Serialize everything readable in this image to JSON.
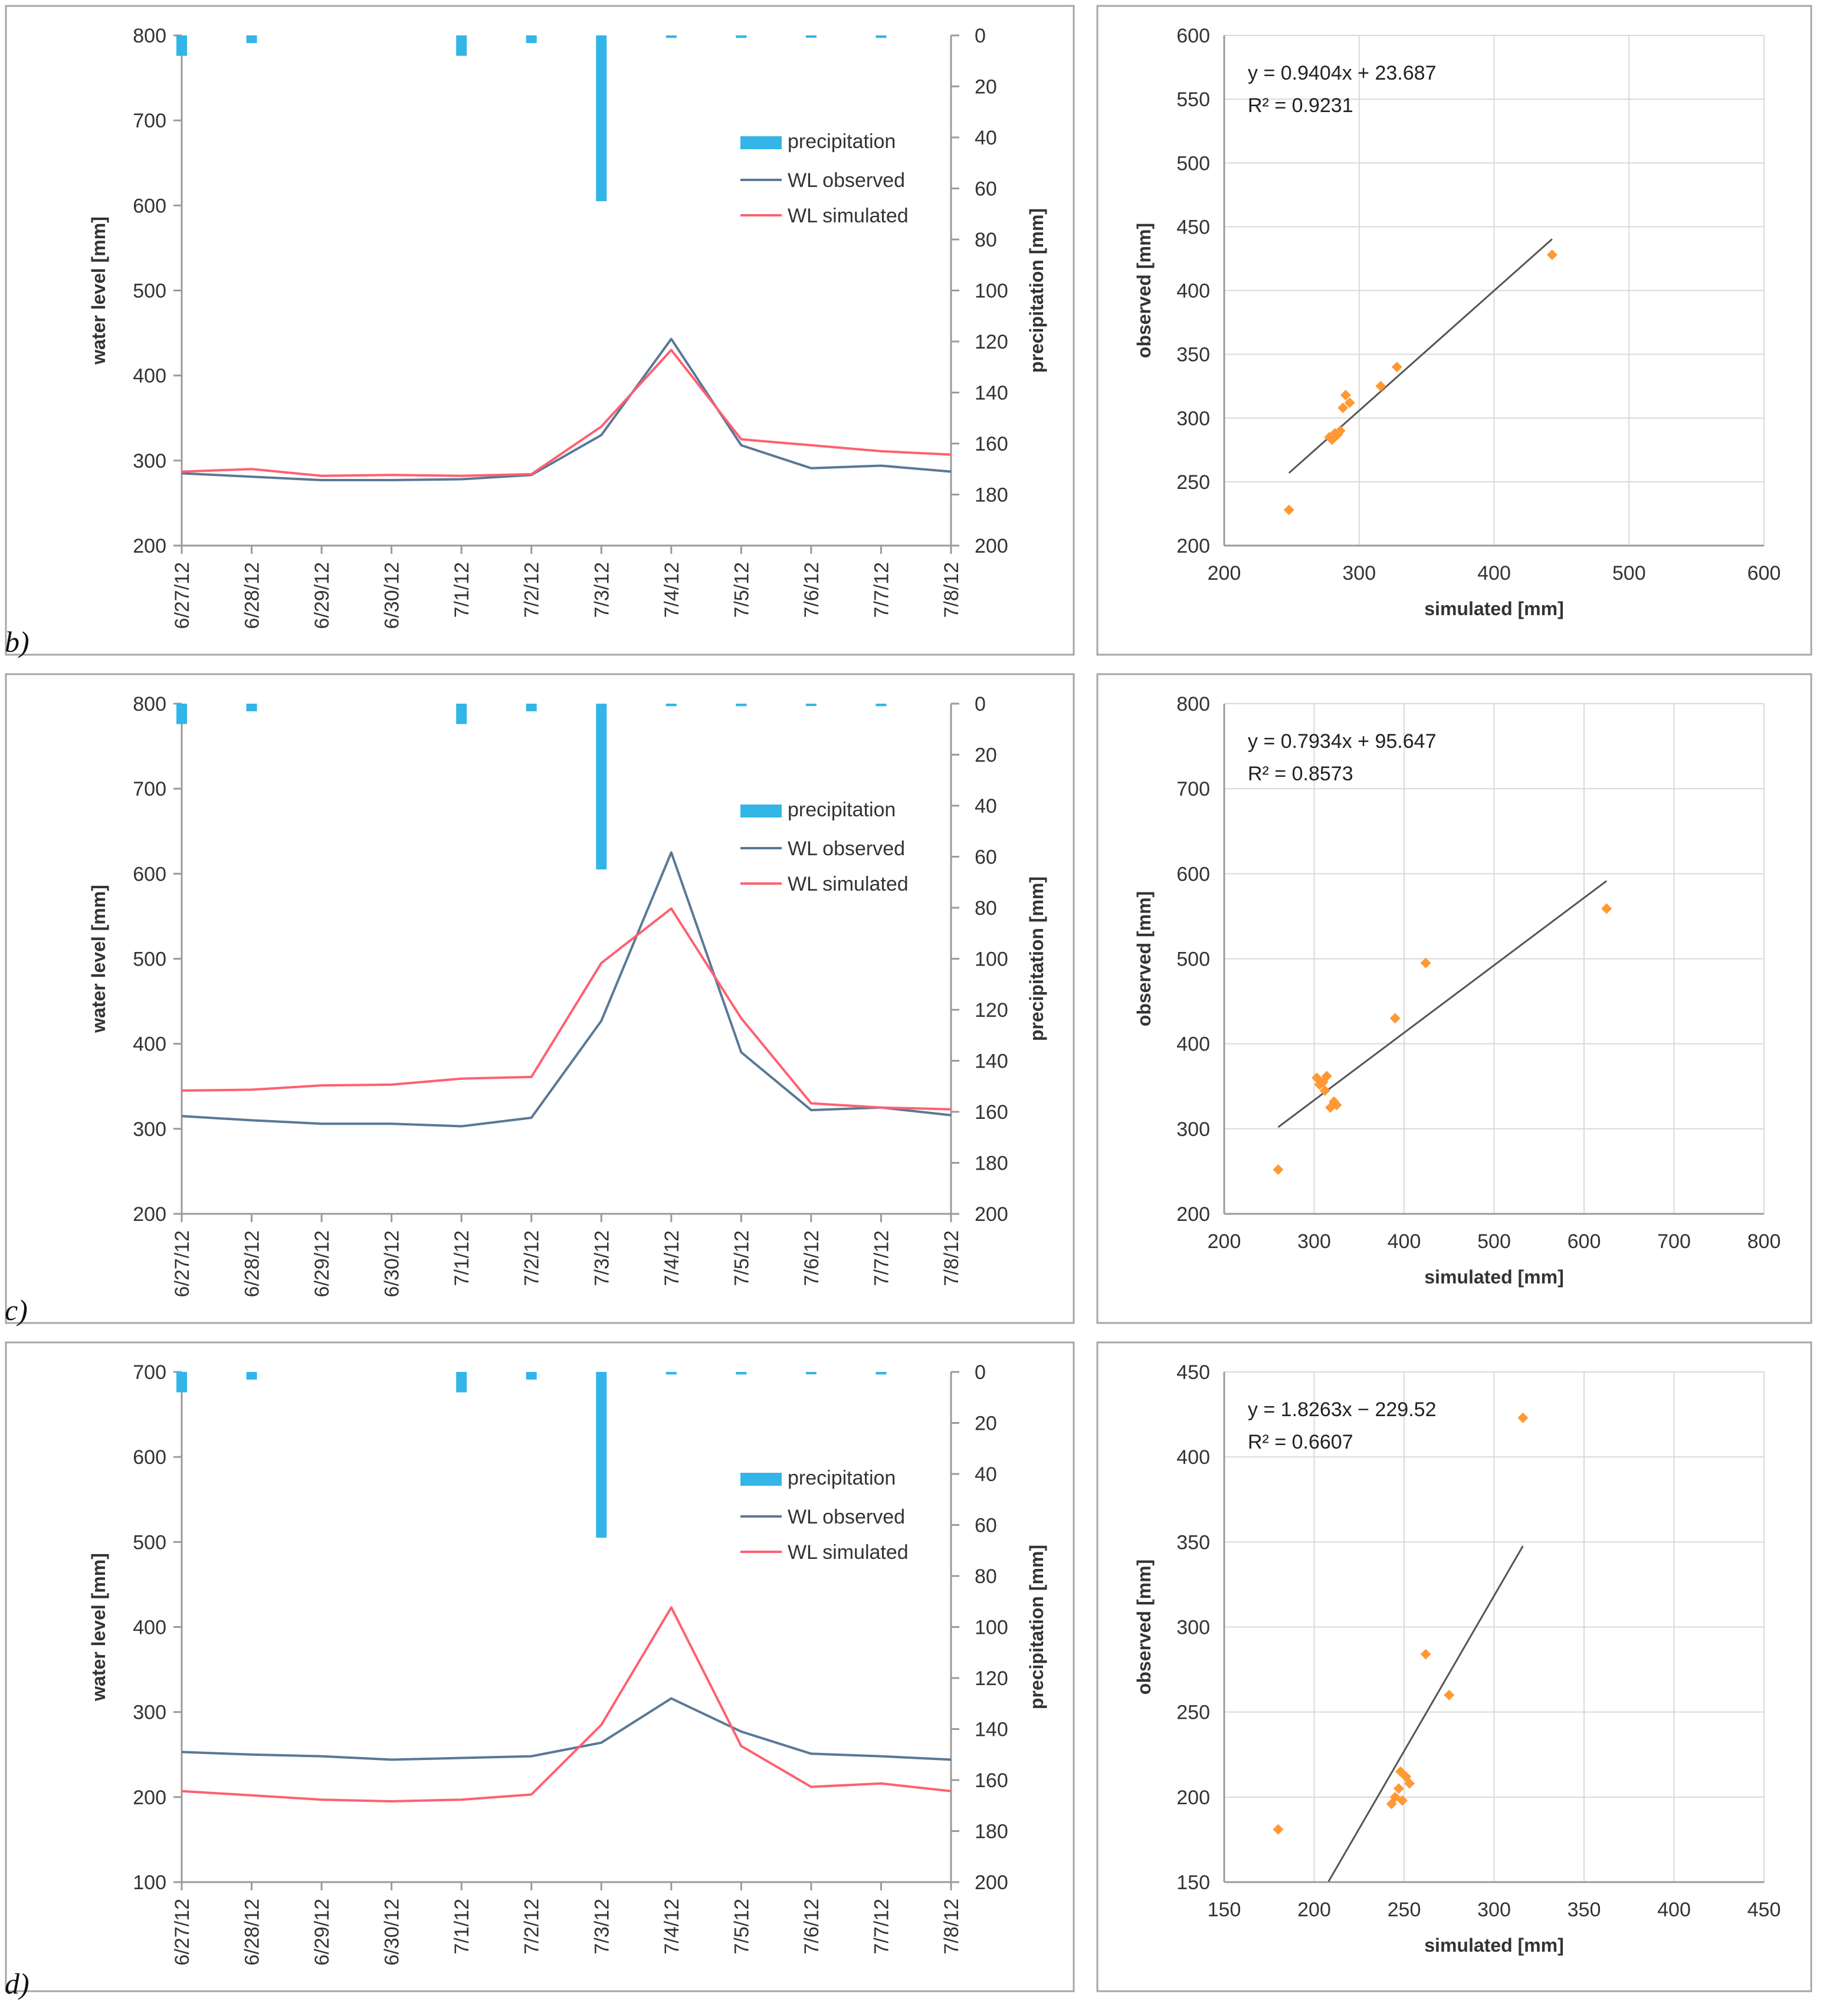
{
  "colors": {
    "precipitation": "#33b5e8",
    "observed": "#5a7896",
    "simulated": "#ff6070",
    "scatter": "#ff9933",
    "fit": "#555555",
    "grid": "#d9d9d9",
    "frame": "#a6a6a6"
  },
  "chart_data": [
    {
      "id": "b-timeseries",
      "panel_label": "b)",
      "type": "line",
      "categories": [
        "6/27/12",
        "6/28/12",
        "6/29/12",
        "6/30/12",
        "7/1/12",
        "7/2/12",
        "7/3/12",
        "7/4/12",
        "7/5/12",
        "7/6/12",
        "7/7/12",
        "7/8/12"
      ],
      "series": [
        {
          "name": "WL observed",
          "values": [
            285,
            281,
            277,
            277,
            278,
            283,
            330,
            443,
            318,
            291,
            294,
            287
          ]
        },
        {
          "name": "WL simulated",
          "values": [
            287,
            290,
            282,
            283,
            282,
            284,
            340,
            430,
            325,
            318,
            311,
            307
          ]
        }
      ],
      "precipitation": {
        "name": "precipitation",
        "values": [
          8,
          3,
          0,
          0,
          8,
          3,
          65,
          1,
          1,
          0.5,
          1,
          0
        ]
      },
      "ylabel": "water level [mm]",
      "ylim": [
        200,
        800
      ],
      "yticks": [
        "200",
        "300",
        "400",
        "500",
        "600",
        "700",
        "800"
      ],
      "y2label": "precipitation [mm]",
      "y2lim": [
        0,
        200
      ],
      "y2ticks": [
        "0",
        "20",
        "40",
        "60",
        "80",
        "100",
        "120",
        "140",
        "160",
        "180",
        "200"
      ],
      "legend": [
        "precipitation",
        "WL observed",
        "WL simulated"
      ]
    },
    {
      "id": "b-scatter",
      "type": "scatter",
      "xlabel": "simulated [mm]",
      "ylabel": "observed [mm]",
      "xlim": [
        200,
        600
      ],
      "ylim": [
        200,
        600
      ],
      "xticks": [
        "200",
        "300",
        "400",
        "500",
        "600"
      ],
      "yticks": [
        "200",
        "250",
        "300",
        "350",
        "400",
        "450",
        "500",
        "550",
        "600"
      ],
      "equation": "y = 0.9404x + 23.687",
      "r2": "R² = 0.9231",
      "fit": {
        "slope": 0.9404,
        "intercept": 23.687,
        "x_range": [
          248,
          443
        ]
      },
      "points": [
        [
          248,
          228
        ],
        [
          278,
          285
        ],
        [
          280,
          283
        ],
        [
          282,
          288
        ],
        [
          284,
          287
        ],
        [
          286,
          290
        ],
        [
          288,
          308
        ],
        [
          290,
          318
        ],
        [
          293,
          312
        ],
        [
          316,
          325
        ],
        [
          328,
          340
        ],
        [
          443,
          428
        ]
      ]
    },
    {
      "id": "c-timeseries",
      "panel_label": "c)",
      "type": "line",
      "categories": [
        "6/27/12",
        "6/28/12",
        "6/29/12",
        "6/30/12",
        "7/1/12",
        "7/2/12",
        "7/3/12",
        "7/4/12",
        "7/5/12",
        "7/6/12",
        "7/7/12",
        "7/8/12"
      ],
      "series": [
        {
          "name": "WL observed",
          "values": [
            315,
            310,
            306,
            306,
            303,
            313,
            427,
            625,
            390,
            322,
            325,
            316
          ]
        },
        {
          "name": "WL simulated",
          "values": [
            345,
            346,
            351,
            352,
            359,
            361,
            495,
            559,
            430,
            330,
            325,
            323
          ]
        }
      ],
      "precipitation": {
        "name": "precipitation",
        "values": [
          8,
          3,
          0,
          0,
          8,
          3,
          65,
          1,
          1,
          0.5,
          1,
          0
        ]
      },
      "ylabel": "water level [mm]",
      "ylim": [
        200,
        800
      ],
      "yticks": [
        "200",
        "300",
        "400",
        "500",
        "600",
        "700",
        "800"
      ],
      "y2label": "precipitation [mm]",
      "y2lim": [
        0,
        200
      ],
      "y2ticks": [
        "0",
        "20",
        "40",
        "60",
        "80",
        "100",
        "120",
        "140",
        "160",
        "180",
        "200"
      ],
      "legend": [
        "precipitation",
        "WL observed",
        "WL simulated"
      ]
    },
    {
      "id": "c-scatter",
      "type": "scatter",
      "xlabel": "simulated [mm]",
      "ylabel": "observed [mm]",
      "xlim": [
        200,
        800
      ],
      "ylim": [
        200,
        800
      ],
      "xticks": [
        "200",
        "300",
        "400",
        "500",
        "600",
        "700",
        "800"
      ],
      "yticks": [
        "200",
        "300",
        "400",
        "500",
        "600",
        "700",
        "800"
      ],
      "equation": "y = 0.7934x + 95.647",
      "r2": "R² = 0.8573",
      "fit": {
        "slope": 0.7934,
        "intercept": 95.647,
        "x_range": [
          260,
          625
        ]
      },
      "points": [
        [
          260,
          252
        ],
        [
          303,
          360
        ],
        [
          306,
          352
        ],
        [
          310,
          355
        ],
        [
          312,
          345
        ],
        [
          314,
          362
        ],
        [
          318,
          325
        ],
        [
          322,
          332
        ],
        [
          325,
          328
        ],
        [
          390,
          430
        ],
        [
          424,
          495
        ],
        [
          625,
          559
        ]
      ]
    },
    {
      "id": "d-timeseries",
      "panel_label": "d)",
      "type": "line",
      "categories": [
        "6/27/12",
        "6/28/12",
        "6/29/12",
        "6/30/12",
        "7/1/12",
        "7/2/12",
        "7/3/12",
        "7/4/12",
        "7/5/12",
        "7/6/12",
        "7/7/12",
        "7/8/12"
      ],
      "series": [
        {
          "name": "WL observed",
          "values": [
            253,
            250,
            248,
            244,
            246,
            248,
            264,
            316,
            277,
            251,
            248,
            244
          ]
        },
        {
          "name": "WL simulated",
          "values": [
            207,
            202,
            197,
            195,
            197,
            203,
            285,
            423,
            260,
            212,
            216,
            207
          ]
        }
      ],
      "precipitation": {
        "name": "precipitation",
        "values": [
          8,
          3,
          0,
          0,
          8,
          3,
          65,
          1,
          1,
          0.5,
          1,
          0
        ]
      },
      "ylabel": "water level [mm]",
      "ylim": [
        100,
        700
      ],
      "yticks": [
        "100",
        "200",
        "300",
        "400",
        "500",
        "600",
        "700"
      ],
      "y2label": "precipitation [mm]",
      "y2lim": [
        0,
        200
      ],
      "y2ticks": [
        "0",
        "20",
        "40",
        "60",
        "80",
        "100",
        "120",
        "140",
        "160",
        "180",
        "200"
      ],
      "legend": [
        "precipitation",
        "WL observed",
        "WL simulated"
      ]
    },
    {
      "id": "d-scatter",
      "type": "scatter",
      "xlabel": "simulated [mm]",
      "ylabel": "observed [mm]",
      "xlim": [
        150,
        450
      ],
      "ylim": [
        150,
        450
      ],
      "xticks": [
        "150",
        "200",
        "250",
        "300",
        "350",
        "400",
        "450"
      ],
      "yticks": [
        "150",
        "200",
        "250",
        "300",
        "350",
        "400",
        "450"
      ],
      "equation": "y = 1.8263x − 229.52",
      "r2": "R² = 0.6607",
      "fit": {
        "slope": 1.8263,
        "intercept": -229.52,
        "x_range": [
          208,
          316
        ]
      },
      "points": [
        [
          180,
          181
        ],
        [
          243,
          196
        ],
        [
          245,
          200
        ],
        [
          247,
          205
        ],
        [
          249,
          198
        ],
        [
          248,
          215
        ],
        [
          251,
          212
        ],
        [
          253,
          208
        ],
        [
          262,
          284
        ],
        [
          275,
          260
        ],
        [
          316,
          423
        ]
      ]
    }
  ]
}
